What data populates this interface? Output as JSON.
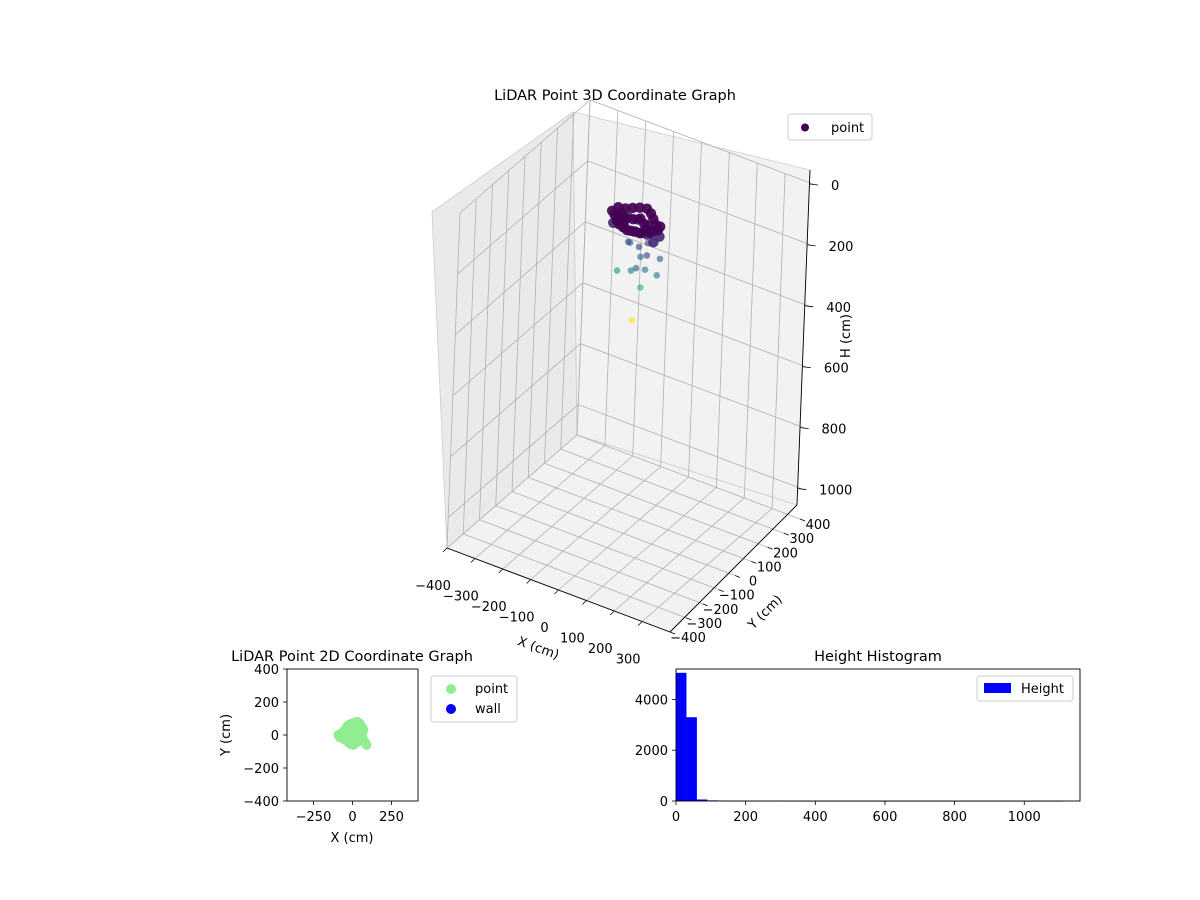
{
  "chart_data": [
    {
      "type": "scatter",
      "projection": "3d",
      "title": "LiDAR Point 3D Coordinate Graph",
      "xlabel": "X (cm)",
      "ylabel": "Y (cm)",
      "zlabel": "H (cm)",
      "xlim": [
        -400,
        400
      ],
      "ylim": [
        -400,
        400
      ],
      "zlim": [
        0,
        1100
      ],
      "z_inverted": true,
      "x_ticks": [
        "−400",
        "−300",
        "−200",
        "−100",
        "0",
        "100",
        "200",
        "300"
      ],
      "y_ticks": [
        "−400",
        "−300",
        "−200",
        "−100",
        "0",
        "100",
        "200",
        "300",
        "400"
      ],
      "z_ticks": [
        "0",
        "200",
        "400",
        "600",
        "800",
        "1000"
      ],
      "grid": true,
      "legend": {
        "position": "top-right",
        "entries": [
          "point"
        ]
      },
      "colormap": "viridis",
      "series": [
        {
          "name": "point",
          "points": [
            [
              -80,
              30,
              70
            ],
            [
              -60,
              40,
              72
            ],
            [
              -40,
              50,
              68
            ],
            [
              -20,
              60,
              65
            ],
            [
              0,
              70,
              66
            ],
            [
              20,
              60,
              70
            ],
            [
              40,
              40,
              72
            ],
            [
              60,
              20,
              74
            ],
            [
              80,
              0,
              76
            ],
            [
              70,
              -30,
              75
            ],
            [
              50,
              -50,
              72
            ],
            [
              30,
              -60,
              70
            ],
            [
              10,
              -70,
              68
            ],
            [
              -10,
              -60,
              70
            ],
            [
              -30,
              -50,
              72
            ],
            [
              -50,
              -30,
              74
            ],
            [
              -70,
              -10,
              72
            ],
            [
              -90,
              10,
              76
            ],
            [
              -60,
              0,
              82
            ],
            [
              -40,
              10,
              85
            ],
            [
              -20,
              20,
              84
            ],
            [
              0,
              30,
              80
            ],
            [
              20,
              20,
              86
            ],
            [
              40,
              0,
              88
            ],
            [
              -30,
              -20,
              90
            ],
            [
              0,
              -30,
              92
            ],
            [
              30,
              -20,
              94
            ],
            [
              -50,
              20,
              96
            ],
            [
              -80,
              50,
              98
            ],
            [
              60,
              50,
              95
            ],
            [
              -60,
              60,
              110
            ],
            [
              -30,
              70,
              112
            ],
            [
              10,
              60,
              115
            ],
            [
              40,
              50,
              118
            ],
            [
              70,
              30,
              115
            ],
            [
              -90,
              20,
              120
            ],
            [
              -70,
              40,
              125
            ],
            [
              20,
              40,
              130
            ],
            [
              -20,
              40,
              135
            ],
            [
              60,
              10,
              128
            ],
            [
              30,
              30,
              150
            ],
            [
              -20,
              60,
              155
            ],
            [
              10,
              10,
              160
            ],
            [
              50,
              -10,
              165
            ],
            [
              -40,
              30,
              170
            ],
            [
              80,
              20,
              180
            ],
            [
              -50,
              60,
              190
            ],
            [
              30,
              -40,
              200
            ],
            [
              0,
              40,
              210
            ],
            [
              40,
              0,
              220
            ],
            [
              -10,
              0,
              240
            ],
            [
              60,
              40,
              250
            ],
            [
              -70,
              20,
              270
            ],
            [
              20,
              10,
              290
            ],
            [
              0,
              0,
              400
            ]
          ]
        }
      ]
    },
    {
      "type": "scatter",
      "title": "LiDAR Point 2D Coordinate Graph",
      "xlabel": "X (cm)",
      "ylabel": "Y (cm)",
      "xlim": [
        -420,
        420
      ],
      "ylim": [
        -400,
        400
      ],
      "x_ticks": [
        -250,
        0,
        250
      ],
      "y_ticks": [
        -400,
        -200,
        0,
        200,
        400
      ],
      "legend": {
        "position": "outside-right",
        "entries": [
          "point",
          "wall"
        ]
      },
      "series": [
        {
          "name": "point",
          "color": "#90ee90",
          "points": [
            [
              -90,
              0
            ],
            [
              -80,
              -15
            ],
            [
              -70,
              10
            ],
            [
              -60,
              -20
            ],
            [
              -55,
              25
            ],
            [
              -45,
              -30
            ],
            [
              -40,
              40
            ],
            [
              -30,
              55
            ],
            [
              -25,
              -45
            ],
            [
              -15,
              65
            ],
            [
              -10,
              -55
            ],
            [
              0,
              70
            ],
            [
              5,
              -60
            ],
            [
              15,
              75
            ],
            [
              20,
              -50
            ],
            [
              30,
              80
            ],
            [
              35,
              -40
            ],
            [
              45,
              70
            ],
            [
              50,
              -30
            ],
            [
              60,
              50
            ],
            [
              65,
              -20
            ],
            [
              70,
              30
            ],
            [
              80,
              -45
            ],
            [
              90,
              -60
            ],
            [
              -20,
              20
            ],
            [
              0,
              30
            ],
            [
              20,
              20
            ],
            [
              40,
              10
            ],
            [
              -40,
              0
            ],
            [
              10,
              -10
            ],
            [
              30,
              -10
            ],
            [
              -10,
              0
            ],
            [
              50,
              40
            ],
            [
              -50,
              10
            ],
            [
              20,
              50
            ],
            [
              -30,
              30
            ],
            [
              0,
              50
            ],
            [
              40,
              -10
            ],
            [
              60,
              0
            ],
            [
              -60,
              5
            ]
          ]
        },
        {
          "name": "wall",
          "color": "#0000ff",
          "points": []
        }
      ]
    },
    {
      "type": "bar",
      "subtype": "histogram",
      "title": "Height Histogram",
      "xlim": [
        0,
        1160
      ],
      "ylim": [
        0,
        5200
      ],
      "x_ticks": [
        0,
        200,
        400,
        600,
        800,
        1000
      ],
      "y_ticks": [
        0,
        2000,
        4000
      ],
      "legend": {
        "position": "top-right",
        "entries": [
          "Height"
        ]
      },
      "series": [
        {
          "name": "Height",
          "color": "#0000ff",
          "bin_width": 30,
          "bin_start": 0,
          "counts": [
            5050,
            3300,
            60,
            25,
            15,
            8,
            8,
            5,
            4,
            4,
            3,
            3,
            2,
            2,
            2,
            2,
            2,
            1,
            1,
            1,
            1,
            1,
            1,
            1,
            1,
            1,
            1,
            1,
            1,
            1,
            1,
            1,
            1,
            1,
            1,
            1,
            1
          ]
        }
      ]
    }
  ]
}
